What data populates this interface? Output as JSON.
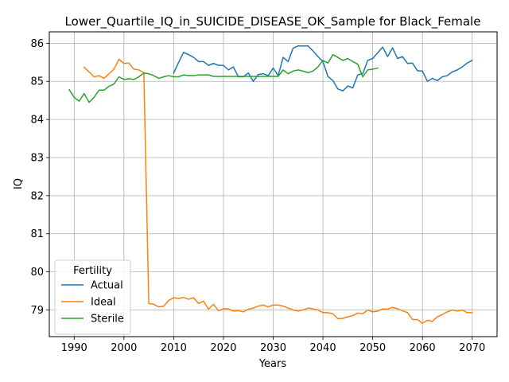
{
  "chart_data": {
    "type": "line",
    "title": "Lower_Quartile_IQ_in_SUICIDE_DISEASE_OK_Sample for Black_Female",
    "xlabel": "Years",
    "ylabel": "IQ",
    "xlim": [
      1985,
      2075
    ],
    "ylim": [
      78.3,
      86.3
    ],
    "xticks": [
      1990,
      2000,
      2010,
      2020,
      2030,
      2040,
      2050,
      2060,
      2070
    ],
    "yticks": [
      79,
      80,
      81,
      82,
      83,
      84,
      85,
      86
    ],
    "grid": true,
    "legend": {
      "title": "Fertility",
      "position": "lower-left"
    },
    "series": [
      {
        "name": "Actual",
        "color": "#1f77b4",
        "x": [
          2010,
          2011,
          2012,
          2013,
          2014,
          2015,
          2016,
          2017,
          2018,
          2019,
          2020,
          2021,
          2022,
          2023,
          2024,
          2025,
          2026,
          2027,
          2028,
          2029,
          2030,
          2031,
          2032,
          2033,
          2034,
          2035,
          2036,
          2037,
          2038,
          2039,
          2040,
          2041,
          2042,
          2043,
          2044,
          2045,
          2046,
          2047,
          2048,
          2049,
          2050,
          2051,
          2052,
          2053,
          2054,
          2055,
          2056,
          2057,
          2058,
          2059,
          2060,
          2061,
          2062,
          2063,
          2064,
          2065,
          2066,
          2067,
          2068,
          2069,
          2070
        ],
        "values": [
          85.22,
          85.5,
          85.76,
          85.7,
          85.63,
          85.52,
          85.52,
          85.42,
          85.47,
          85.42,
          85.42,
          85.3,
          85.38,
          85.12,
          85.12,
          85.22,
          85.0,
          85.18,
          85.2,
          85.15,
          85.35,
          85.15,
          85.63,
          85.52,
          85.87,
          85.93,
          85.93,
          85.93,
          85.8,
          85.65,
          85.52,
          85.13,
          85.02,
          84.8,
          84.75,
          84.88,
          84.83,
          85.17,
          85.2,
          85.55,
          85.6,
          85.75,
          85.9,
          85.65,
          85.88,
          85.6,
          85.65,
          85.47,
          85.48,
          85.28,
          85.27,
          85.0,
          85.08,
          85.02,
          85.12,
          85.15,
          85.25,
          85.3,
          85.38,
          85.48,
          85.55
        ]
      },
      {
        "name": "Ideal",
        "color": "#ff7f0e",
        "x": [
          1992,
          1993,
          1994,
          1995,
          1996,
          1997,
          1998,
          1999,
          2000,
          2001,
          2002,
          2003,
          2004,
          2005,
          2006,
          2007,
          2008,
          2009,
          2010,
          2011,
          2012,
          2013,
          2014,
          2015,
          2016,
          2017,
          2018,
          2019,
          2020,
          2021,
          2022,
          2023,
          2024,
          2025,
          2026,
          2027,
          2028,
          2029,
          2030,
          2031,
          2032,
          2033,
          2034,
          2035,
          2036,
          2037,
          2038,
          2039,
          2040,
          2041,
          2042,
          2043,
          2044,
          2045,
          2046,
          2047,
          2048,
          2049,
          2050,
          2051,
          2052,
          2053,
          2054,
          2055,
          2056,
          2057,
          2058,
          2059,
          2060,
          2061,
          2062,
          2063,
          2064,
          2065,
          2066,
          2067,
          2068,
          2069,
          2070
        ],
        "values": [
          85.37,
          85.25,
          85.12,
          85.15,
          85.08,
          85.2,
          85.32,
          85.58,
          85.47,
          85.48,
          85.32,
          85.3,
          85.23,
          79.17,
          79.15,
          79.08,
          79.1,
          79.25,
          79.32,
          79.3,
          79.33,
          79.28,
          79.32,
          79.17,
          79.23,
          79.02,
          79.15,
          78.98,
          79.03,
          79.03,
          78.97,
          78.98,
          78.95,
          79.02,
          79.05,
          79.1,
          79.13,
          79.08,
          79.13,
          79.13,
          79.1,
          79.05,
          79.0,
          78.97,
          79.0,
          79.05,
          79.03,
          79.0,
          78.93,
          78.93,
          78.9,
          78.77,
          78.78,
          78.82,
          78.85,
          78.92,
          78.9,
          79.0,
          78.95,
          78.97,
          79.03,
          79.02,
          79.07,
          79.03,
          78.98,
          78.93,
          78.75,
          78.75,
          78.65,
          78.73,
          78.7,
          78.82,
          78.88,
          78.95,
          79.0,
          78.97,
          79.0,
          78.93,
          78.93
        ]
      },
      {
        "name": "Sterile",
        "color": "#2ca02c",
        "x": [
          1989,
          1990,
          1991,
          1992,
          1993,
          1994,
          1995,
          1996,
          1997,
          1998,
          1999,
          2000,
          2001,
          2002,
          2003,
          2004,
          2005,
          2006,
          2007,
          2008,
          2009,
          2010,
          2011,
          2012,
          2013,
          2014,
          2015,
          2016,
          2017,
          2018,
          2019,
          2020,
          2021,
          2022,
          2023,
          2024,
          2025,
          2026,
          2027,
          2028,
          2029,
          2030,
          2031,
          2032,
          2033,
          2034,
          2035,
          2036,
          2037,
          2038,
          2039,
          2040,
          2041,
          2042,
          2043,
          2044,
          2045,
          2046,
          2047,
          2048,
          2049,
          2050,
          2051
        ],
        "values": [
          84.78,
          84.58,
          84.48,
          84.68,
          84.45,
          84.58,
          84.77,
          84.77,
          84.87,
          84.93,
          85.12,
          85.05,
          85.07,
          85.05,
          85.12,
          85.22,
          85.2,
          85.15,
          85.08,
          85.12,
          85.15,
          85.12,
          85.12,
          85.17,
          85.15,
          85.15,
          85.17,
          85.17,
          85.17,
          85.13,
          85.13,
          85.13,
          85.13,
          85.13,
          85.13,
          85.13,
          85.13,
          85.13,
          85.13,
          85.13,
          85.13,
          85.13,
          85.13,
          85.3,
          85.2,
          85.27,
          85.3,
          85.27,
          85.23,
          85.27,
          85.38,
          85.55,
          85.48,
          85.7,
          85.63,
          85.55,
          85.6,
          85.52,
          85.45,
          85.12,
          85.3,
          85.32,
          85.35
        ]
      }
    ]
  }
}
